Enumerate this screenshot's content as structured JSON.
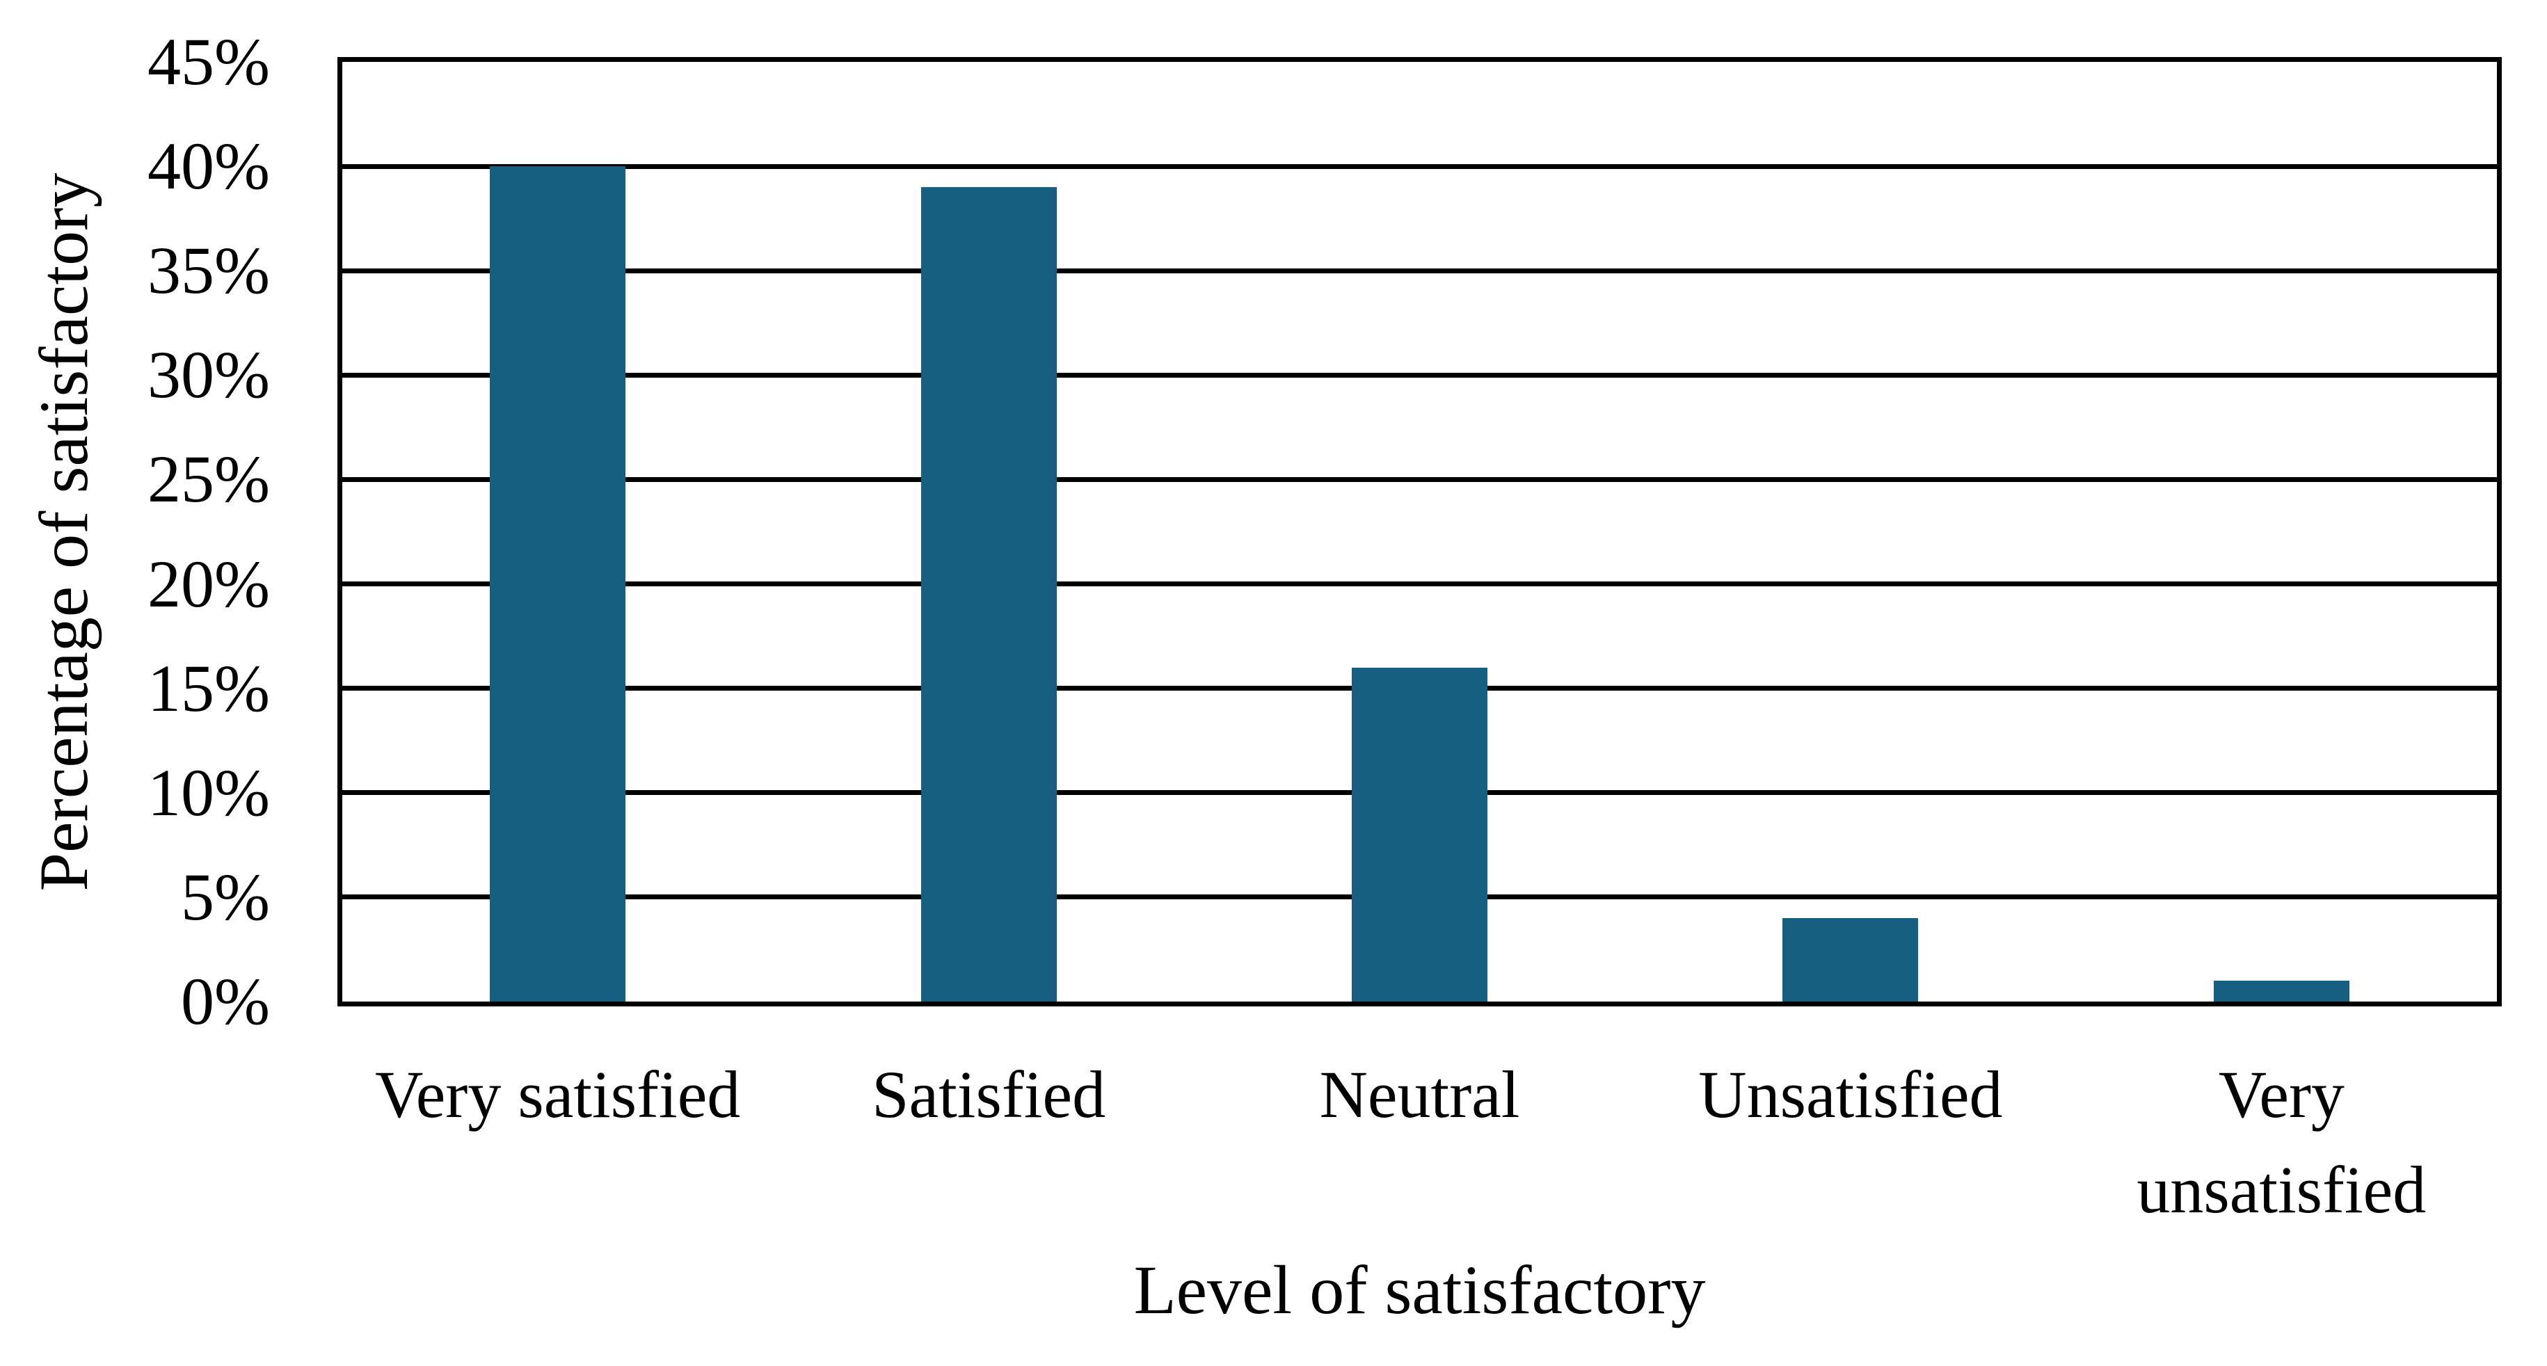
{
  "chart_data": {
    "type": "bar",
    "title": "",
    "categories": [
      "Very satisfied",
      "Satisfied",
      "Neutral",
      "Unsatisfied",
      "Very unsatisfied"
    ],
    "values": [
      40,
      39,
      16,
      4,
      1
    ],
    "value_unit": "%",
    "xlabel": "Level of satisfactory",
    "ylabel": "Percentage of satisfactory",
    "ylim": [
      0,
      45
    ],
    "ytick_step": 5,
    "ytick_labels": [
      "0%",
      "5%",
      "10%",
      "15%",
      "20%",
      "25%",
      "30%",
      "35%",
      "40%",
      "45%"
    ],
    "legend": null,
    "grid": "horizontal",
    "plot_border": true,
    "colors": {
      "bar_fill": "#165F80",
      "gridline": "#000000",
      "axis_line": "#000000",
      "text": "#000000",
      "background": "#FFFFFF"
    }
  }
}
